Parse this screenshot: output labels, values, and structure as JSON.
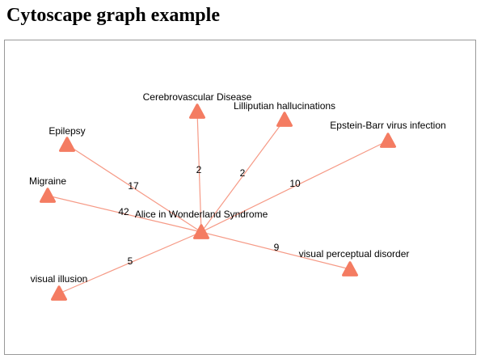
{
  "page": {
    "title": "Cytoscape graph example"
  },
  "graph": {
    "colors": {
      "node": "#f47c62",
      "edge": "#f69a86",
      "border": "#999999"
    },
    "node_shape": "triangle",
    "center": {
      "label": "Alice in Wonderland Syndrome"
    },
    "nodes": [
      {
        "label": "Cerebrovascular Disease",
        "weight": "2"
      },
      {
        "label": "Lilliputian hallucinations",
        "weight": "2"
      },
      {
        "label": "Epstein-Barr virus infection",
        "weight": "10"
      },
      {
        "label": "Epilepsy",
        "weight": "17"
      },
      {
        "label": "Migraine",
        "weight": "42"
      },
      {
        "label": "visual perceptual disorder",
        "weight": "9"
      },
      {
        "label": "visual illusion",
        "weight": "5"
      }
    ]
  }
}
